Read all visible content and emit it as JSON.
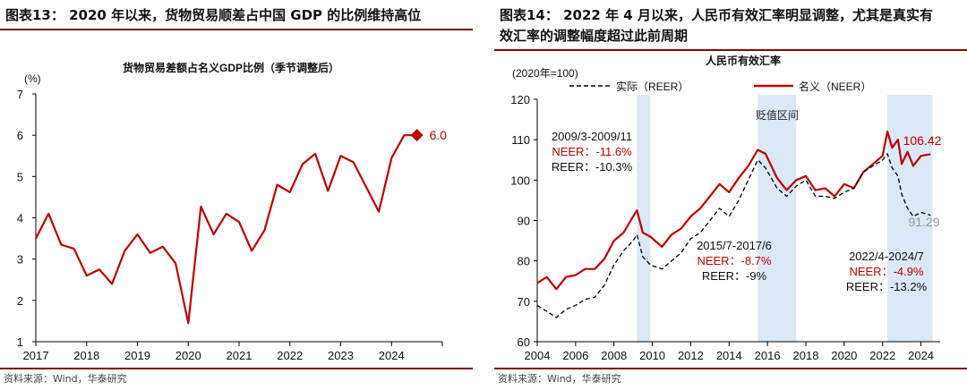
{
  "left": {
    "figure_title": "图表13：  2020 年以来，货物贸易顺差占中国 GDP 的比例维持高位",
    "source": "资料来源：Wind，华泰研究",
    "colors": {
      "line": "#c00000",
      "marker": "#c00000",
      "axis": "#000000",
      "rule": "#7a0a0a"
    }
  },
  "right": {
    "figure_title_line1": "图表14：  2022 年 4 月以来，人民币有效汇率明显调整，尤其是真实有",
    "figure_title_line2": "效汇率的调整幅度超过此前周期",
    "source": "资料来源：Wind，华泰研究",
    "colors": {
      "neer": "#c00000",
      "reer": "#000000",
      "band": "#dbe8f5",
      "rule": "#7a0a0a"
    }
  },
  "chart_data": [
    {
      "type": "line",
      "title": "货物贸易差额占名义GDP比例（季节调整后）",
      "unit_label": "(%)",
      "ylim": [
        1,
        7
      ],
      "yticks": [
        "1",
        "2",
        "3",
        "4",
        "5",
        "6",
        "7"
      ],
      "xlim": [
        2017,
        2025
      ],
      "xticks": [
        "2017",
        "2018",
        "2019",
        "2020",
        "2021",
        "2022",
        "2023",
        "2024"
      ],
      "series": [
        {
          "name": "",
          "x": [
            2017.0,
            2017.25,
            2017.5,
            2017.75,
            2018.0,
            2018.25,
            2018.5,
            2018.75,
            2019.0,
            2019.25,
            2019.5,
            2019.75,
            2020.0,
            2020.25,
            2020.5,
            2020.75,
            2021.0,
            2021.25,
            2021.5,
            2021.75,
            2022.0,
            2022.25,
            2022.5,
            2022.75,
            2023.0,
            2023.25,
            2023.5,
            2023.75,
            2024.0,
            2024.25,
            2024.5
          ],
          "y": [
            3.5,
            4.1,
            3.35,
            3.25,
            2.6,
            2.75,
            2.4,
            3.2,
            3.6,
            3.15,
            3.3,
            2.9,
            1.45,
            4.27,
            3.6,
            4.1,
            3.9,
            3.2,
            3.7,
            4.8,
            4.62,
            5.3,
            5.55,
            4.65,
            5.5,
            5.35,
            4.75,
            4.15,
            5.45,
            6.0,
            6.0
          ]
        }
      ],
      "last_point": {
        "x": 2024.5,
        "y": 6.0,
        "label": "6.0"
      },
      "grid": false
    },
    {
      "type": "line",
      "title": "人民币有效汇率",
      "unit_label": "(2020年=100)",
      "ylim": [
        60,
        120
      ],
      "yticks": [
        "60",
        "70",
        "80",
        "90",
        "100",
        "110",
        "120"
      ],
      "xlim": [
        2004,
        2025
      ],
      "xticks": [
        "2004",
        "2006",
        "2008",
        "2010",
        "2012",
        "2014",
        "2016",
        "2018",
        "2020",
        "2022",
        "2024"
      ],
      "legend": [
        {
          "name": "实际（REER）",
          "style": "dashed"
        },
        {
          "name": "名义（NEER）",
          "style": "solid"
        }
      ],
      "legend_position": "top",
      "series": [
        {
          "name": "名义（NEER）",
          "x": [
            2004.0,
            2004.5,
            2005.0,
            2005.5,
            2006.0,
            2006.5,
            2007.0,
            2007.5,
            2008.0,
            2008.5,
            2009.0,
            2009.2,
            2009.5,
            2009.9,
            2010.5,
            2011.0,
            2011.5,
            2012.0,
            2012.5,
            2013.0,
            2013.5,
            2014.0,
            2014.5,
            2015.0,
            2015.5,
            2015.9,
            2016.5,
            2017.0,
            2017.5,
            2018.0,
            2018.5,
            2019.0,
            2019.5,
            2020.0,
            2020.5,
            2021.0,
            2021.5,
            2022.0,
            2022.25,
            2022.5,
            2022.8,
            2023.0,
            2023.3,
            2023.6,
            2024.0,
            2024.5
          ],
          "y": [
            74.5,
            76,
            73,
            76,
            76.5,
            78,
            78,
            80.5,
            85,
            87,
            91,
            92.5,
            87,
            86,
            83.5,
            86.5,
            88,
            91,
            93,
            96,
            99,
            97,
            100.5,
            103.5,
            107.5,
            106.5,
            100.5,
            97.5,
            100,
            101,
            97.5,
            98,
            96,
            99,
            98,
            102,
            104,
            106,
            112,
            108,
            110,
            104,
            107,
            103.5,
            106,
            106.4
          ]
        },
        {
          "name": "实际（REER）",
          "x": [
            2004.0,
            2004.5,
            2005.0,
            2005.5,
            2006.0,
            2006.5,
            2007.0,
            2007.5,
            2008.0,
            2008.5,
            2009.0,
            2009.2,
            2009.5,
            2009.9,
            2010.5,
            2011.0,
            2011.5,
            2012.0,
            2012.5,
            2013.0,
            2013.5,
            2014.0,
            2014.5,
            2015.0,
            2015.5,
            2015.9,
            2016.5,
            2017.0,
            2017.5,
            2018.0,
            2018.5,
            2019.0,
            2019.5,
            2020.0,
            2020.5,
            2021.0,
            2021.5,
            2022.0,
            2022.25,
            2022.5,
            2022.8,
            2023.0,
            2023.3,
            2023.6,
            2024.0,
            2024.5
          ],
          "y": [
            69,
            67.5,
            66,
            68,
            69,
            70.5,
            71,
            74,
            79,
            82.5,
            85,
            86.5,
            81,
            79,
            78,
            80,
            82,
            85.5,
            87,
            90,
            93,
            91,
            95,
            100,
            105,
            103,
            98,
            96,
            98.5,
            100,
            96,
            96,
            95.5,
            97,
            98,
            102,
            103.5,
            105,
            106.5,
            103,
            101,
            96.5,
            93,
            91,
            92,
            91.3
          ]
        }
      ],
      "end_labels": {
        "neer": "106.42",
        "reer": "91.29"
      },
      "shaded_periods": [
        {
          "start": 2009.2,
          "end": 2009.9,
          "label": ""
        },
        {
          "start": 2015.5,
          "end": 2017.5,
          "label": "贬值区间"
        },
        {
          "start": 2022.25,
          "end": 2024.6,
          "label": ""
        }
      ],
      "annotations": [
        {
          "period": "2009/3-2009/11",
          "neer": "NEER：-11.6%",
          "reer": "REER：-10.3%"
        },
        {
          "period": "2015/7-2017/6",
          "neer": "NEER：-8.7%",
          "reer": "REER：-9%"
        },
        {
          "period": "2022/4-2024/7",
          "neer": "NEER：-4.9%",
          "reer": "REER：-13.2%"
        }
      ],
      "grid": false
    }
  ]
}
